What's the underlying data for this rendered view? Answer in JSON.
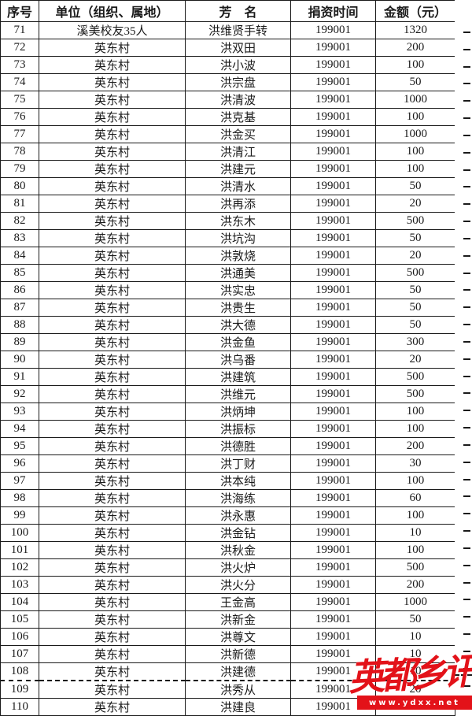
{
  "table": {
    "columns": [
      {
        "key": "no",
        "label": "序号"
      },
      {
        "key": "unit",
        "label": "单位（组织、属地）"
      },
      {
        "key": "name",
        "label": "芳　名"
      },
      {
        "key": "time",
        "label": "捐资时间"
      },
      {
        "key": "amount",
        "label": "金额（元）"
      }
    ],
    "rows": [
      [
        "71",
        "溪美校友35人",
        "洪维贤手转",
        "199001",
        "1320"
      ],
      [
        "72",
        "英东村",
        "洪双田",
        "199001",
        "200"
      ],
      [
        "73",
        "英东村",
        "洪小波",
        "199001",
        "100"
      ],
      [
        "74",
        "英东村",
        "洪宗盘",
        "199001",
        "50"
      ],
      [
        "75",
        "英东村",
        "洪清波",
        "199001",
        "1000"
      ],
      [
        "76",
        "英东村",
        "洪克基",
        "199001",
        "100"
      ],
      [
        "77",
        "英东村",
        "洪金买",
        "199001",
        "1000"
      ],
      [
        "78",
        "英东村",
        "洪清江",
        "199001",
        "100"
      ],
      [
        "79",
        "英东村",
        "洪建元",
        "199001",
        "100"
      ],
      [
        "80",
        "英东村",
        "洪清水",
        "199001",
        "50"
      ],
      [
        "81",
        "英东村",
        "洪再添",
        "199001",
        "20"
      ],
      [
        "82",
        "英东村",
        "洪东木",
        "199001",
        "500"
      ],
      [
        "83",
        "英东村",
        "洪坑沟",
        "199001",
        "50"
      ],
      [
        "84",
        "英东村",
        "洪敦烧",
        "199001",
        "20"
      ],
      [
        "85",
        "英东村",
        "洪通美",
        "199001",
        "500"
      ],
      [
        "86",
        "英东村",
        "洪实忠",
        "199001",
        "50"
      ],
      [
        "87",
        "英东村",
        "洪贵生",
        "199001",
        "50"
      ],
      [
        "88",
        "英东村",
        "洪大德",
        "199001",
        "50"
      ],
      [
        "89",
        "英东村",
        "洪金鱼",
        "199001",
        "300"
      ],
      [
        "90",
        "英东村",
        "洪乌番",
        "199001",
        "20"
      ],
      [
        "91",
        "英东村",
        "洪建筑",
        "199001",
        "500"
      ],
      [
        "92",
        "英东村",
        "洪维元",
        "199001",
        "500"
      ],
      [
        "93",
        "英东村",
        "洪炳坤",
        "199001",
        "100"
      ],
      [
        "94",
        "英东村",
        "洪振标",
        "199001",
        "100"
      ],
      [
        "95",
        "英东村",
        "洪德胜",
        "199001",
        "200"
      ],
      [
        "96",
        "英东村",
        "洪丁财",
        "199001",
        "30"
      ],
      [
        "97",
        "英东村",
        "洪本纯",
        "199001",
        "100"
      ],
      [
        "98",
        "英东村",
        "洪海练",
        "199001",
        "60"
      ],
      [
        "99",
        "英东村",
        "洪永惠",
        "199001",
        "100"
      ],
      [
        "100",
        "英东村",
        "洪金钻",
        "199001",
        "10"
      ],
      [
        "101",
        "英东村",
        "洪秋金",
        "199001",
        "100"
      ],
      [
        "102",
        "英东村",
        "洪火炉",
        "199001",
        "500"
      ],
      [
        "103",
        "英东村",
        "洪火分",
        "199001",
        "200"
      ],
      [
        "104",
        "英东村",
        "王金高",
        "199001",
        "1000"
      ],
      [
        "105",
        "英东村",
        "洪新金",
        "199001",
        "50"
      ],
      [
        "106",
        "英东村",
        "洪尊文",
        "199001",
        "10"
      ],
      [
        "107",
        "英东村",
        "洪新德",
        "199001",
        "10"
      ],
      [
        "108",
        "英东村",
        "洪建德",
        "199001",
        "10"
      ],
      [
        "109",
        "英东村",
        "洪秀从",
        "199001",
        "20"
      ],
      [
        "110",
        "英东村",
        "洪建良",
        "199001",
        "100"
      ]
    ],
    "page_break_after_no": "108"
  },
  "watermark": {
    "brand_text": "英都乡讯",
    "site_url": "www.ydxx.net",
    "accent_color": "#e31219"
  },
  "colors": {
    "grid": "#1a1a1a",
    "text": "#1a1a1a",
    "background": "#ffffff"
  }
}
